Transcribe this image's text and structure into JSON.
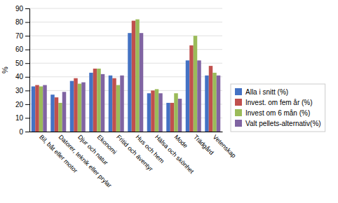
{
  "chart_data": {
    "type": "bar",
    "categories": [
      "Bil, båt eller motor",
      "Datorer, teknik eller prylar",
      "Djur och natur",
      "Ekonomi",
      "Fritid och äventyr",
      "Hus och hem",
      "Hälsa och skönhet",
      "Mode",
      "Trädgård",
      "Vetenskap"
    ],
    "series": [
      {
        "name": "Alla i snitt (%)",
        "color": "#4472C4",
        "values": [
          33,
          27,
          37,
          43,
          41,
          72,
          28,
          21,
          52,
          41
        ]
      },
      {
        "name": "Invest. om fem år (%)",
        "color": "#C0504D",
        "values": [
          34,
          25,
          39,
          46,
          39,
          81,
          30,
          21,
          63,
          48
        ]
      },
      {
        "name": "Invest om 6 mån (%)",
        "color": "#9BBB59",
        "values": [
          33,
          21,
          35,
          46,
          34,
          82,
          31,
          28,
          70,
          43
        ]
      },
      {
        "name": "Valt pellets-alternativ(%)",
        "color": "#8064A2",
        "values": [
          34,
          29,
          36,
          42,
          41,
          72,
          28,
          24,
          52,
          41
        ]
      }
    ],
    "ylabel": "% ",
    "ylim": [
      0,
      90
    ],
    "yticks": [
      0,
      10,
      20,
      30,
      40,
      50,
      60,
      70,
      80,
      90
    ],
    "grid": true,
    "legend": "lower right"
  }
}
